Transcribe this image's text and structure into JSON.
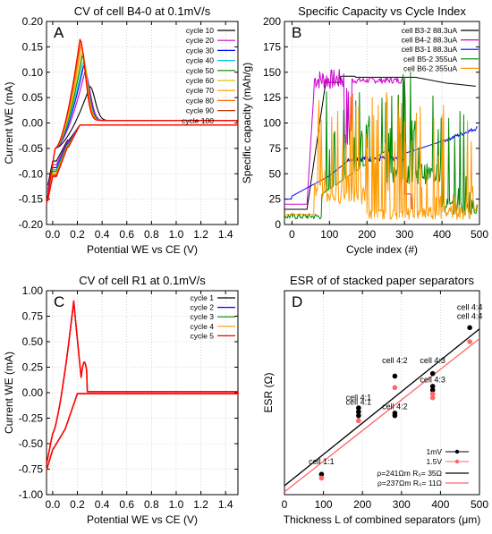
{
  "chart_data": [
    {
      "panel": "A",
      "type": "line",
      "title": "CV of cell B4-0 at 0.1mV/s",
      "xlabel": "Potential WE vs CE (V)",
      "ylabel": "Current WE (mA)",
      "xlim": [
        -0.05,
        1.5
      ],
      "ylim": [
        -0.2,
        0.2
      ],
      "xticks": [
        0.0,
        0.2,
        0.4,
        0.6,
        0.8,
        1.0,
        1.2,
        1.4
      ],
      "xtick_labels": [
        "0.0",
        "0.2",
        "0.4",
        "0.6",
        "0.8",
        "1.0",
        "1.2",
        "1.4"
      ],
      "yticks": [
        -0.2,
        -0.15,
        -0.1,
        -0.05,
        0.0,
        0.05,
        0.1,
        0.15,
        0.2
      ],
      "ytick_labels": [
        "-0.20",
        "-0.15",
        "-0.10",
        "-0.05",
        "0.00",
        "0.05",
        "0.10",
        "0.15",
        "0.20"
      ],
      "grid": true,
      "legend": "top-right",
      "series": [
        {
          "name": "cycle 10",
          "color": "#000000",
          "peak": 0.072,
          "peak_x": 0.3,
          "cath": -0.075
        },
        {
          "name": "cycle 20",
          "color": "#cc00cc",
          "peak": 0.1,
          "peak_x": 0.26,
          "cath": -0.082
        },
        {
          "name": "cycle 30",
          "color": "#0000ff",
          "peak": 0.112,
          "peak_x": 0.25,
          "cath": -0.088
        },
        {
          "name": "cycle 40",
          "color": "#00cccc",
          "peak": 0.12,
          "peak_x": 0.245,
          "cath": -0.092
        },
        {
          "name": "cycle 50",
          "color": "#008800",
          "peak": 0.132,
          "peak_x": 0.24,
          "cath": -0.095
        },
        {
          "name": "cycle 60",
          "color": "#cccc00",
          "peak": 0.14,
          "peak_x": 0.235,
          "cath": -0.098
        },
        {
          "name": "cycle 70",
          "color": "#ff9900",
          "peak": 0.15,
          "peak_x": 0.23,
          "cath": -0.1
        },
        {
          "name": "cycle 80",
          "color": "#ff6600",
          "peak": 0.158,
          "peak_x": 0.225,
          "cath": -0.102
        },
        {
          "name": "cycle 90",
          "color": "#cc3300",
          "peak": 0.162,
          "peak_x": 0.22,
          "cath": -0.104
        },
        {
          "name": "cycle 100",
          "color": "#ff0000",
          "peak": 0.165,
          "peak_x": 0.22,
          "cath": -0.106
        }
      ]
    },
    {
      "panel": "B",
      "type": "line",
      "title": "Specific Capacity vs Cycle Index",
      "xlabel": "Cycle index (#)",
      "ylabel": "Specific capacity (mAh/g)",
      "xlim": [
        -20,
        500
      ],
      "ylim": [
        0,
        200
      ],
      "xticks": [
        0,
        100,
        200,
        300,
        400,
        500
      ],
      "xtick_labels": [
        "0",
        "100",
        "200",
        "300",
        "400",
        "500"
      ],
      "yticks": [
        0,
        25,
        50,
        75,
        100,
        125,
        150,
        175,
        200
      ],
      "ytick_labels": [
        "0",
        "25",
        "50",
        "75",
        "100",
        "125",
        "150",
        "175",
        "200"
      ],
      "grid": true,
      "legend": "top-right",
      "series": [
        {
          "name": "cell B3-2 88.3uA",
          "color": "#000000"
        },
        {
          "name": "cell B4-2 88.3uA",
          "color": "#cc00cc"
        },
        {
          "name": "cell B3-1 88.3uA",
          "color": "#0000ff"
        },
        {
          "name": "cell B5-2 355uA",
          "color": "#008800"
        },
        {
          "name": "cell B6-2 355uA",
          "color": "#ff9900"
        }
      ]
    },
    {
      "panel": "C",
      "type": "line",
      "title": "CV of cell R1 at 0.1mV/s",
      "xlabel": "Potential WE vs CE (V)",
      "ylabel": "Current WE (mA)",
      "xlim": [
        -0.05,
        1.5
      ],
      "ylim": [
        -1.0,
        1.0
      ],
      "xticks": [
        0.0,
        0.2,
        0.4,
        0.6,
        0.8,
        1.0,
        1.2,
        1.4
      ],
      "xtick_labels": [
        "0.0",
        "0.2",
        "0.4",
        "0.6",
        "0.8",
        "1.0",
        "1.2",
        "1.4"
      ],
      "yticks": [
        -1.0,
        -0.75,
        -0.5,
        -0.25,
        0.0,
        0.25,
        0.5,
        0.75,
        1.0
      ],
      "ytick_labels": [
        "-1.00",
        "-0.75",
        "-0.50",
        "-0.25",
        "0.00",
        "0.25",
        "0.50",
        "0.75",
        "1.00"
      ],
      "grid": true,
      "legend": "top-right",
      "series": [
        {
          "name": "cycle 1",
          "color": "#000000"
        },
        {
          "name": "cycle 2",
          "color": "#0000ff"
        },
        {
          "name": "cycle 3",
          "color": "#008800"
        },
        {
          "name": "cycle 4",
          "color": "#ff9900"
        },
        {
          "name": "cycle 5",
          "color": "#ff0000"
        }
      ]
    },
    {
      "panel": "D",
      "type": "scatter",
      "title": "ESR of of stacked paper separators",
      "xlabel": "Thickness L of combined separators (μm)",
      "ylabel": "ESR (Ω)",
      "xlim": [
        0,
        500
      ],
      "ylim": [
        0,
        800
      ],
      "xticks": [
        0,
        100,
        200,
        300,
        400,
        500
      ],
      "xtick_labels": [
        "0",
        "100",
        "200",
        "300",
        "400",
        "500"
      ],
      "grid": true,
      "legend": "bottom-right",
      "series": [
        {
          "name": "1mV",
          "color": "#000000",
          "points": [
            [
              95,
              80
            ],
            [
              190,
              310
            ],
            [
              190,
              325
            ],
            [
              190,
              340
            ],
            [
              283,
              310
            ],
            [
              283,
              320
            ],
            [
              283,
              465
            ],
            [
              380,
              410
            ],
            [
              380,
              425
            ],
            [
              380,
              475
            ],
            [
              475,
              655
            ]
          ]
        },
        {
          "name": "1.5V",
          "color": "#ff6666",
          "points": [
            [
              95,
              65
            ],
            [
              190,
              290
            ],
            [
              283,
              420
            ],
            [
              380,
              380
            ],
            [
              380,
              395
            ],
            [
              475,
              600
            ]
          ]
        }
      ],
      "fits": [
        {
          "name": "ρ=241Ωm R₀= 35Ω",
          "color": "#000000",
          "x": [
            0,
            500
          ],
          "y": [
            35,
            650
          ]
        },
        {
          "name": "ρ=237Ωm R₀= 11Ω",
          "color": "#ff6666",
          "x": [
            0,
            500
          ],
          "y": [
            11,
            612
          ]
        }
      ],
      "annotations": [
        {
          "text": "cell 1:1",
          "x": 95,
          "y": 120
        },
        {
          "text": "cell 4:1",
          "x": 190,
          "y": 370
        },
        {
          "text": "cell 4:1",
          "x": 190,
          "y": 352
        },
        {
          "text": "cell 4:2",
          "x": 283,
          "y": 515
        },
        {
          "text": "cell 4:2",
          "x": 283,
          "y": 335
        },
        {
          "text": "cell 4:3",
          "x": 380,
          "y": 515
        },
        {
          "text": "cell 4:3",
          "x": 380,
          "y": 440
        },
        {
          "text": "cell 4:4",
          "x": 475,
          "y": 725
        },
        {
          "text": "cell 4:4",
          "x": 475,
          "y": 690
        }
      ]
    }
  ],
  "panel_labels": [
    "A",
    "B",
    "C",
    "D"
  ]
}
